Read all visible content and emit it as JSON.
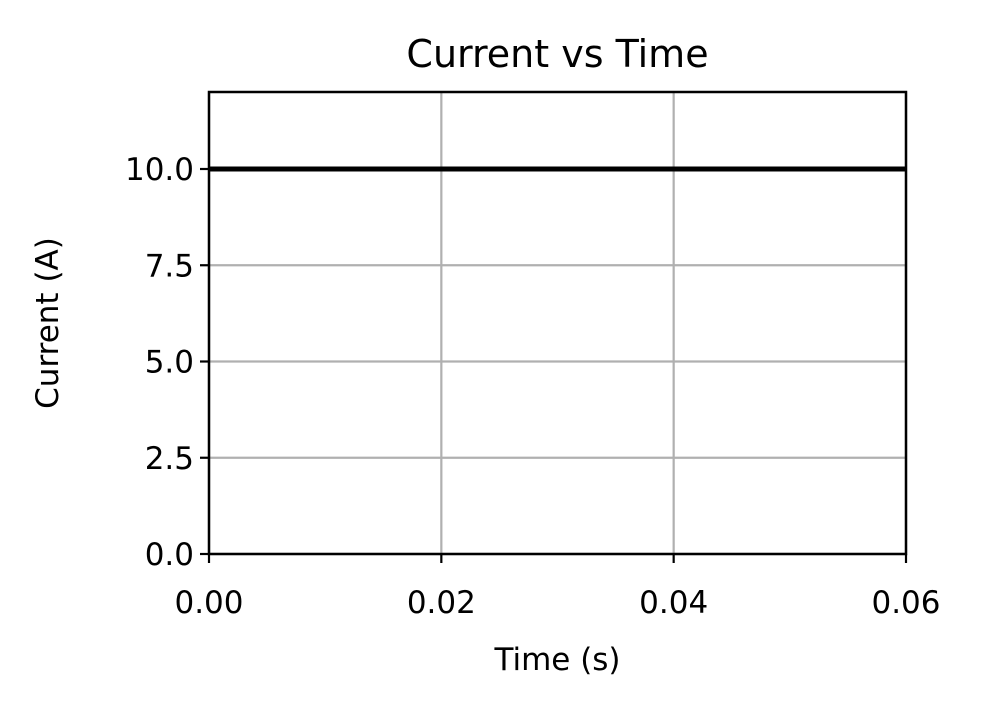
{
  "chart_data": {
    "type": "line",
    "title": "Current vs Time",
    "xlabel": "Time (s)",
    "ylabel": "Current (A)",
    "xlim": [
      0.0,
      0.06
    ],
    "ylim": [
      0.0,
      12.0
    ],
    "xticks": [
      0.0,
      0.02,
      0.04,
      0.06
    ],
    "xtick_labels": [
      "0.00",
      "0.02",
      "0.04",
      "0.06"
    ],
    "yticks": [
      0.0,
      2.5,
      5.0,
      7.5,
      10.0
    ],
    "ytick_labels": [
      "0.0",
      "2.5",
      "5.0",
      "7.5",
      "10.0"
    ],
    "grid": true,
    "legend": "none",
    "series": [
      {
        "color": "#000000",
        "x": [
          0.0,
          0.06
        ],
        "y": [
          10.0,
          10.0
        ]
      }
    ]
  }
}
